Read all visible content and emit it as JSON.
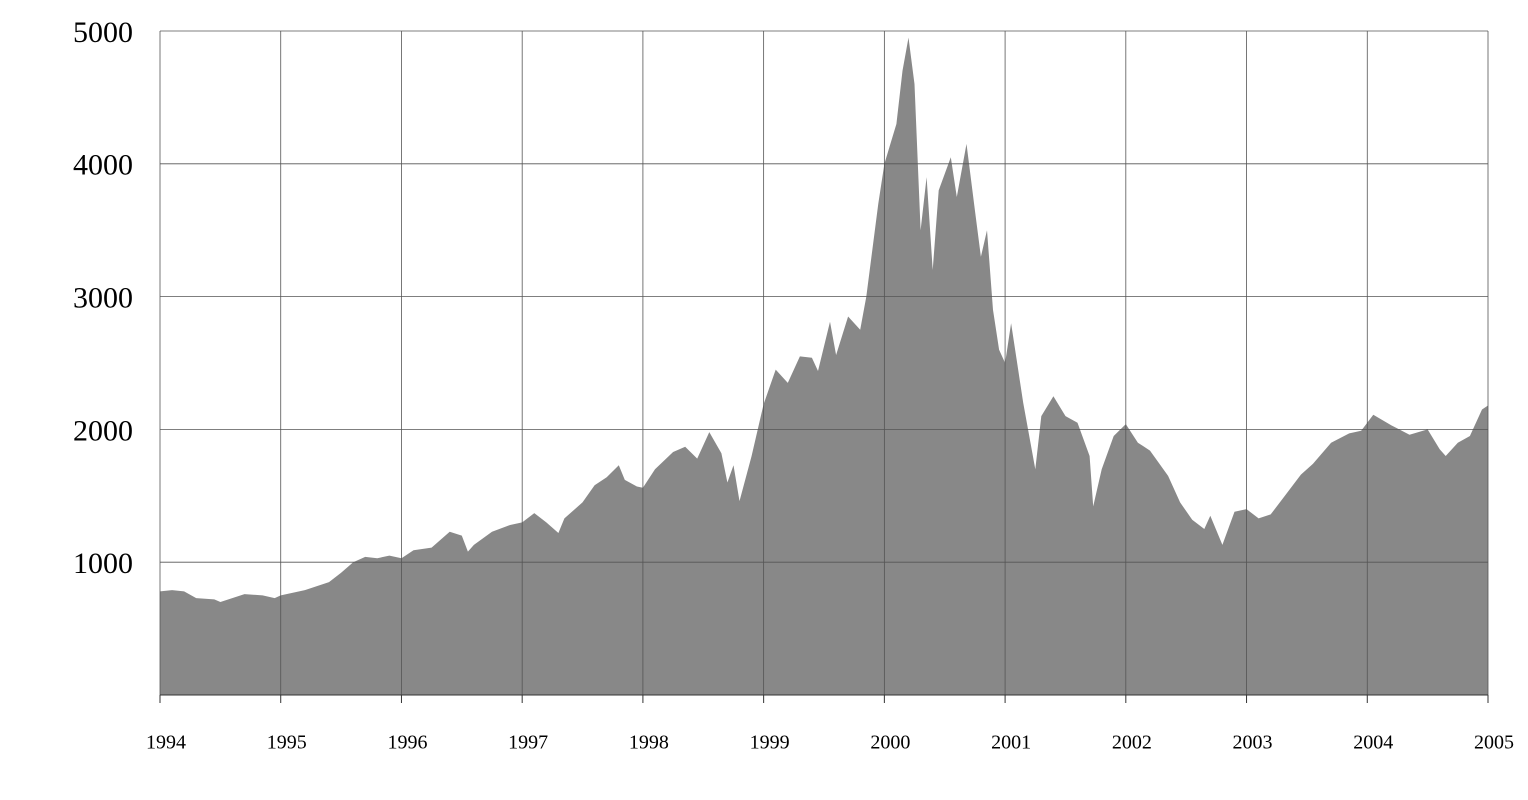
{
  "chart_data": {
    "type": "area",
    "color": "#888888",
    "grid": true,
    "xlim": [
      1994,
      2005
    ],
    "ylim": [
      0,
      5000
    ],
    "xticks": [
      1994,
      1995,
      1996,
      1997,
      1998,
      1999,
      2000,
      2001,
      2002,
      2003,
      2004,
      2005
    ],
    "yticks": [
      1000,
      2000,
      3000,
      4000,
      5000
    ],
    "x": [
      1994.0,
      1994.1,
      1994.2,
      1994.3,
      1994.45,
      1994.5,
      1994.7,
      1994.85,
      1994.95,
      1995.0,
      1995.2,
      1995.4,
      1995.5,
      1995.6,
      1995.7,
      1995.8,
      1995.9,
      1996.0,
      1996.1,
      1996.25,
      1996.4,
      1996.5,
      1996.55,
      1996.6,
      1996.75,
      1996.9,
      1997.0,
      1997.1,
      1997.2,
      1997.3,
      1997.35,
      1997.5,
      1997.6,
      1997.7,
      1997.8,
      1997.85,
      1997.95,
      1998.0,
      1998.1,
      1998.25,
      1998.35,
      1998.45,
      1998.55,
      1998.65,
      1998.7,
      1998.75,
      1998.8,
      1998.9,
      1999.0,
      1999.1,
      1999.2,
      1999.3,
      1999.4,
      1999.45,
      1999.55,
      1999.6,
      1999.7,
      1999.8,
      1999.85,
      1999.95,
      2000.0,
      2000.1,
      2000.15,
      2000.2,
      2000.25,
      2000.3,
      2000.35,
      2000.4,
      2000.45,
      2000.55,
      2000.6,
      2000.68,
      2000.75,
      2000.8,
      2000.85,
      2000.9,
      2000.95,
      2001.0,
      2001.05,
      2001.15,
      2001.25,
      2001.3,
      2001.4,
      2001.5,
      2001.6,
      2001.7,
      2001.73,
      2001.8,
      2001.9,
      2002.0,
      2002.1,
      2002.2,
      2002.35,
      2002.45,
      2002.55,
      2002.65,
      2002.7,
      2002.8,
      2002.9,
      2003.0,
      2003.1,
      2003.2,
      2003.3,
      2003.45,
      2003.55,
      2003.7,
      2003.85,
      2003.95,
      2004.05,
      2004.2,
      2004.35,
      2004.5,
      2004.6,
      2004.65,
      2004.75,
      2004.85,
      2004.95,
      2005.0
    ],
    "values": [
      780,
      790,
      780,
      730,
      720,
      700,
      760,
      750,
      730,
      750,
      790,
      850,
      920,
      1000,
      1040,
      1030,
      1050,
      1030,
      1090,
      1110,
      1230,
      1200,
      1080,
      1130,
      1230,
      1280,
      1300,
      1370,
      1300,
      1220,
      1330,
      1450,
      1580,
      1640,
      1730,
      1620,
      1570,
      1560,
      1700,
      1830,
      1870,
      1780,
      1980,
      1820,
      1600,
      1730,
      1460,
      1800,
      2190,
      2450,
      2350,
      2550,
      2540,
      2440,
      2810,
      2560,
      2850,
      2750,
      3000,
      3700,
      4000,
      4300,
      4700,
      4950,
      4600,
      3500,
      3900,
      3200,
      3800,
      4050,
      3750,
      4150,
      3650,
      3300,
      3500,
      2900,
      2600,
      2500,
      2800,
      2200,
      1700,
      2100,
      2250,
      2100,
      2050,
      1800,
      1420,
      1700,
      1950,
      2040,
      1900,
      1840,
      1650,
      1450,
      1320,
      1250,
      1350,
      1130,
      1380,
      1400,
      1330,
      1360,
      1480,
      1660,
      1740,
      1900,
      1970,
      1990,
      2110,
      2030,
      1960,
      2000,
      1850,
      1800,
      1900,
      1950,
      2150,
      2180
    ]
  }
}
